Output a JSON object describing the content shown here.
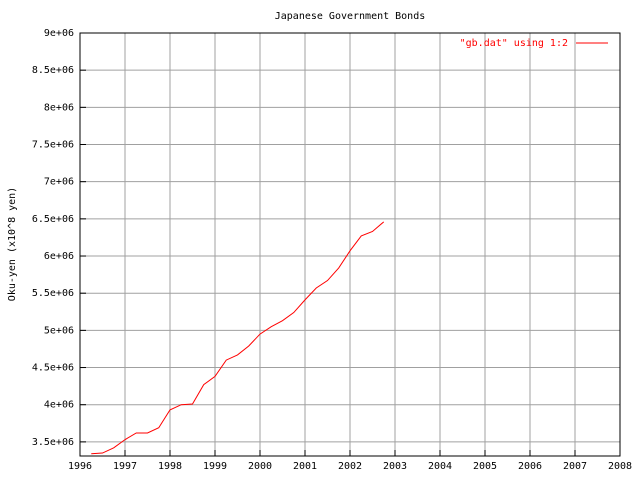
{
  "chart_data": {
    "type": "line",
    "title": "Japanese Government Bonds",
    "ylabel": "Oku-yen (x10^8 yen)",
    "x": [
      1996.25,
      1996.5,
      1996.75,
      1997,
      1997.25,
      1997.5,
      1997.75,
      1998,
      1998.25,
      1998.5,
      1998.75,
      1999,
      1999.25,
      1999.5,
      1999.75,
      2000,
      2000.25,
      2000.5,
      2000.75,
      2001,
      2001.25,
      2001.5,
      2001.75,
      2002,
      2002.25,
      2002.5,
      2002.75
    ],
    "series": [
      {
        "name": "\"gb.dat\" using 1:2",
        "color": "#ff0000",
        "values": [
          3340000,
          3350000,
          3420000,
          3530000,
          3620000,
          3620000,
          3690000,
          3930000,
          4000000,
          4010000,
          4270000,
          4380000,
          4600000,
          4670000,
          4790000,
          4950000,
          5050000,
          5130000,
          5240000,
          5410000,
          5570000,
          5670000,
          5840000,
          6070000,
          6270000,
          6330000,
          6460000
        ]
      }
    ],
    "xlim": [
      1996,
      2008
    ],
    "xticks": [
      1996,
      1997,
      1998,
      1999,
      2000,
      2001,
      2002,
      2003,
      2004,
      2005,
      2006,
      2007,
      2008
    ],
    "ylim": [
      3310000,
      9000000
    ],
    "yticks": [
      {
        "value": 3500000,
        "label": "3.5e+06"
      },
      {
        "value": 4000000,
        "label": "4e+06"
      },
      {
        "value": 4500000,
        "label": "4.5e+06"
      },
      {
        "value": 5000000,
        "label": "5e+06"
      },
      {
        "value": 5500000,
        "label": "5.5e+06"
      },
      {
        "value": 6000000,
        "label": "6e+06"
      },
      {
        "value": 6500000,
        "label": "6.5e+06"
      },
      {
        "value": 7000000,
        "label": "7e+06"
      },
      {
        "value": 7500000,
        "label": "7.5e+06"
      },
      {
        "value": 8000000,
        "label": "8e+06"
      },
      {
        "value": 8500000,
        "label": "8.5e+06"
      },
      {
        "value": 9000000,
        "label": "9e+06"
      }
    ],
    "grid": true,
    "legend": "top-right"
  }
}
